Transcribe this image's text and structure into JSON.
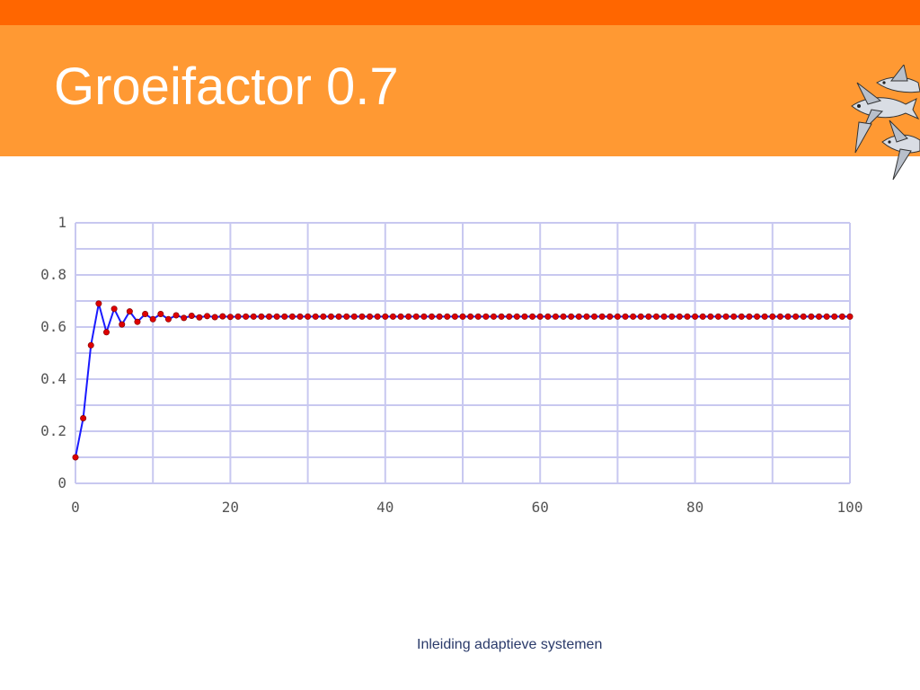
{
  "slide": {
    "title": "Groeifactor 0.7",
    "footer": "Inleiding adaptieve systemen",
    "colors": {
      "top_strip": "#ff6600",
      "title_band": "#ff9933",
      "title_text": "#ffffff",
      "footer_text": "#2a3a6a"
    },
    "decoration_icon": "flying-fish-icon"
  },
  "chart_data": {
    "type": "line",
    "title": "",
    "xlabel": "",
    "ylabel": "",
    "xlim": [
      0,
      100
    ],
    "ylim": [
      0,
      1
    ],
    "x_ticks": [
      0,
      20,
      40,
      60,
      80,
      100
    ],
    "y_ticks": [
      0,
      0.2,
      0.4,
      0.6,
      0.8,
      1
    ],
    "y_tick_labels": [
      "0",
      "0.2",
      "0.4",
      "0.6",
      "0.8",
      "1"
    ],
    "grid": true,
    "x_grid_step": 10,
    "y_grid_step": 0.1,
    "colors": {
      "line": "#1a1aff",
      "marker": "#dd0000",
      "grid": "#c8c8f0",
      "axis_text": "#555555"
    },
    "series": [
      {
        "x": [
          0,
          1,
          2,
          3,
          4,
          5,
          6,
          7,
          8,
          9,
          10,
          11,
          12,
          13,
          14,
          15,
          16,
          17,
          18,
          19,
          20,
          21,
          22,
          23,
          24,
          25,
          26,
          27,
          28,
          29,
          30,
          31,
          32,
          33,
          34,
          35,
          36,
          37,
          38,
          39,
          40,
          41,
          42,
          43,
          44,
          45,
          46,
          47,
          48,
          49,
          50,
          51,
          52,
          53,
          54,
          55,
          56,
          57,
          58,
          59,
          60,
          61,
          62,
          63,
          64,
          65,
          66,
          67,
          68,
          69,
          70,
          71,
          72,
          73,
          74,
          75,
          76,
          77,
          78,
          79,
          80,
          81,
          82,
          83,
          84,
          85,
          86,
          87,
          88,
          89,
          90,
          91,
          92,
          93,
          94,
          95,
          96,
          97,
          98,
          99,
          100
        ],
        "values": [
          0.1,
          0.25,
          0.53,
          0.69,
          0.58,
          0.67,
          0.61,
          0.66,
          0.62,
          0.65,
          0.63,
          0.65,
          0.63,
          0.645,
          0.635,
          0.643,
          0.637,
          0.642,
          0.638,
          0.641,
          0.639,
          0.64,
          0.64,
          0.64,
          0.64,
          0.64,
          0.64,
          0.64,
          0.64,
          0.64,
          0.64,
          0.64,
          0.64,
          0.64,
          0.64,
          0.64,
          0.64,
          0.64,
          0.64,
          0.64,
          0.64,
          0.64,
          0.64,
          0.64,
          0.64,
          0.64,
          0.64,
          0.64,
          0.64,
          0.64,
          0.64,
          0.64,
          0.64,
          0.64,
          0.64,
          0.64,
          0.64,
          0.64,
          0.64,
          0.64,
          0.64,
          0.64,
          0.64,
          0.64,
          0.64,
          0.64,
          0.64,
          0.64,
          0.64,
          0.64,
          0.64,
          0.64,
          0.64,
          0.64,
          0.64,
          0.64,
          0.64,
          0.64,
          0.64,
          0.64,
          0.64,
          0.64,
          0.64,
          0.64,
          0.64,
          0.64,
          0.64,
          0.64,
          0.64,
          0.64,
          0.64,
          0.64,
          0.64,
          0.64,
          0.64,
          0.64,
          0.64,
          0.64,
          0.64,
          0.64,
          0.64
        ]
      }
    ]
  }
}
